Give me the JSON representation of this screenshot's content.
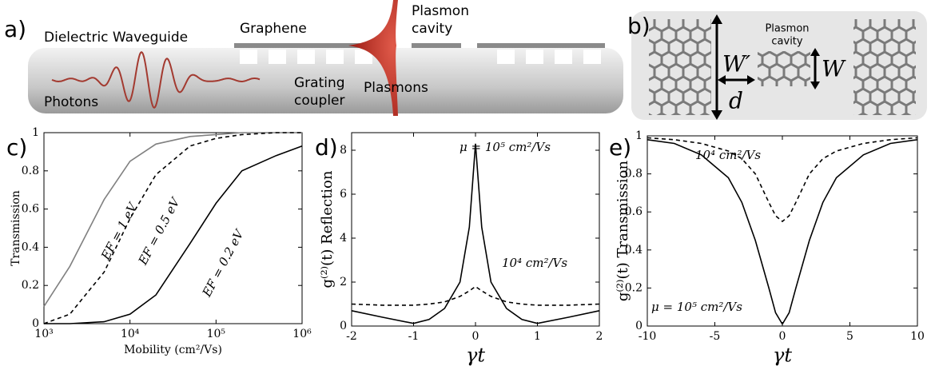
{
  "diagram_a": {
    "label": "a)",
    "waveguide": "Dielectric Waveguide",
    "graphene": "Graphene",
    "plasmon_cavity": [
      "Plasmon",
      "cavity"
    ],
    "photons": "Photons",
    "grating_coupler": [
      "Grating",
      "coupler"
    ],
    "plasmons": "Plasmons"
  },
  "diagram_b": {
    "label": "b)",
    "plasmon_cavity": [
      "Plasmon",
      "cavity"
    ],
    "w_prime": "W′",
    "w": "W",
    "d": "d"
  },
  "chart_data": [
    {
      "type": "line",
      "panel_label": "c)",
      "xlabel": "Mobility (cm²/Vs)",
      "ylabel": "Transmission",
      "xscale": "log",
      "x": [
        1000,
        2000,
        5000,
        10000,
        20000,
        50000,
        100000,
        200000,
        500000,
        1000000
      ],
      "series": [
        {
          "name": "EF = 1 eV",
          "color": "#808080",
          "linestyle": "solid",
          "values": [
            0.09,
            0.3,
            0.65,
            0.85,
            0.94,
            0.98,
            0.99,
            1,
            1,
            1
          ]
        },
        {
          "name": "EF = 0.5 eV",
          "color": "#000000",
          "linestyle": "dashed",
          "values": [
            0.0,
            0.05,
            0.27,
            0.55,
            0.78,
            0.93,
            0.97,
            0.99,
            1,
            1
          ]
        },
        {
          "name": "EF = 0.2 eV",
          "color": "#000000",
          "linestyle": "solid",
          "values": [
            0,
            0,
            0.01,
            0.05,
            0.15,
            0.42,
            0.63,
            0.8,
            0.88,
            0.93
          ]
        }
      ],
      "xlim": [
        1000,
        1000000
      ],
      "ylim": [
        0,
        1
      ],
      "xticks": [
        {
          "value": 1000,
          "label": "10³"
        },
        {
          "value": 10000,
          "label": "10⁴"
        },
        {
          "value": 100000,
          "label": "10⁵"
        },
        {
          "value": 1000000,
          "label": "10⁶"
        }
      ],
      "yticks": [
        0,
        0.2,
        0.4,
        0.6,
        0.8,
        1
      ]
    },
    {
      "type": "line",
      "panel_label": "d)",
      "xlabel": "γt",
      "ylabel": "g⁽²⁾(t) Reflection",
      "x": [
        -2,
        -1.5,
        -1,
        -0.75,
        -0.5,
        -0.25,
        -0.1,
        0,
        0.1,
        0.25,
        0.5,
        0.75,
        1,
        1.5,
        2
      ],
      "series": [
        {
          "name": "μ = 10⁵ cm²/Vs",
          "color": "#000000",
          "linestyle": "solid",
          "values": [
            0.7,
            0.4,
            0.12,
            0.3,
            0.8,
            2.0,
            4.5,
            8.3,
            4.5,
            2.0,
            0.8,
            0.3,
            0.12,
            0.4,
            0.7
          ]
        },
        {
          "name": "10⁴ cm²/Vs",
          "color": "#000000",
          "linestyle": "dashed",
          "values": [
            1.0,
            0.95,
            0.95,
            1.0,
            1.1,
            1.35,
            1.6,
            1.8,
            1.6,
            1.35,
            1.1,
            1.0,
            0.95,
            0.95,
            1.0
          ]
        }
      ],
      "xlim": [
        -2,
        2
      ],
      "ylim": [
        0,
        8.8
      ],
      "xticks": [
        -2,
        -1,
        0,
        1,
        2
      ],
      "yticks": [
        0,
        2,
        4,
        6,
        8
      ]
    },
    {
      "type": "line",
      "panel_label": "e)",
      "xlabel": "γt",
      "ylabel": "g⁽²⁾(t) Transmission",
      "x": [
        -10,
        -8,
        -6,
        -4,
        -3,
        -2,
        -1,
        -0.5,
        0,
        0.5,
        1,
        2,
        3,
        4,
        6,
        8,
        10
      ],
      "series": [
        {
          "name": "10⁴ cm²/Vs",
          "color": "#000000",
          "linestyle": "dashed",
          "values": [
            0.99,
            0.98,
            0.96,
            0.92,
            0.88,
            0.8,
            0.65,
            0.58,
            0.55,
            0.58,
            0.65,
            0.8,
            0.88,
            0.92,
            0.96,
            0.98,
            0.99
          ]
        },
        {
          "name": "μ = 10⁵ cm²/Vs",
          "color": "#000000",
          "linestyle": "solid",
          "values": [
            0.98,
            0.96,
            0.9,
            0.78,
            0.65,
            0.45,
            0.2,
            0.07,
            0.01,
            0.07,
            0.2,
            0.45,
            0.65,
            0.78,
            0.9,
            0.96,
            0.98
          ]
        }
      ],
      "xlim": [
        -10,
        10
      ],
      "ylim": [
        0,
        1
      ],
      "xticks": [
        -10,
        -5,
        0,
        5,
        10
      ],
      "yticks": [
        0,
        0.2,
        0.4,
        0.6,
        0.8,
        1
      ]
    }
  ]
}
